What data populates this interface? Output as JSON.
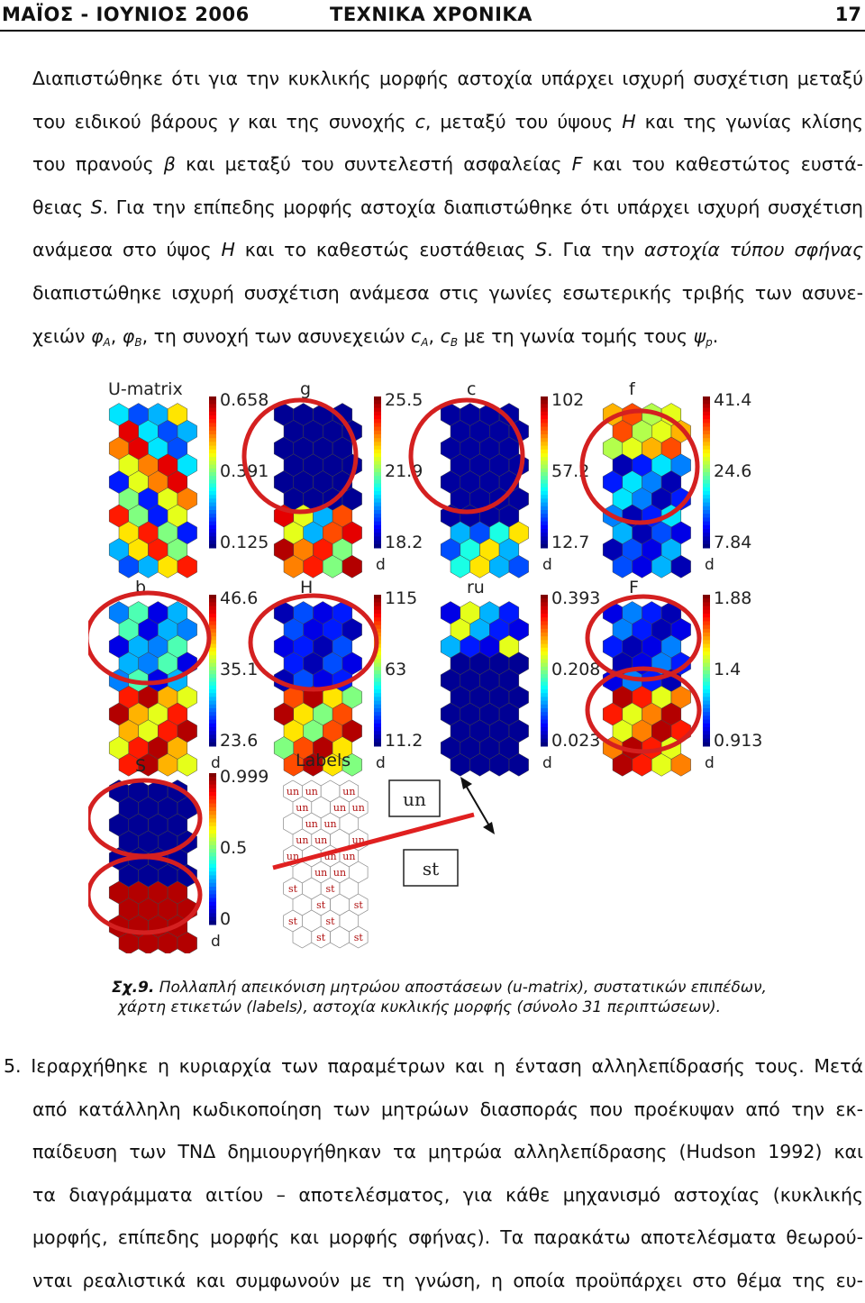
{
  "header": {
    "left": "ΜΑΪΟΣ - ΙΟΥΝΙΟΣ 2006",
    "center": "ΤΕΧΝΙΚΑ ΧΡΟΝΙΚΑ",
    "page": "17"
  },
  "para1": {
    "l1": "Διαπιστώθηκε ότι για την κυκλικής μορφής αστοχία υπάρχει ισχυρή συσχέτιση μεταξύ",
    "l2a": "του ειδικού βάρους ",
    "l2b": "γ",
    "l2c": " και της συνοχής ",
    "l2d": "c",
    "l2e": ", μεταξύ του ύψους ",
    "l2f": "H",
    "l2g": " και της γωνίας κλίσης",
    "l3a": "του πρανούς  ",
    "l3b": "β",
    "l3c": " και μεταξύ του συντελεστή ασφαλείας ",
    "l3d": "F",
    "l3e": " και του καθεστώτος ευστά-",
    "l4a": "θειας ",
    "l4b": "S",
    "l4c": ". Για την επίπεδης μορφής αστοχία διαπιστώθηκε ότι υπάρχει ισχυρή συσχέτιση",
    "l5a": "ανάμεσα στο ύψος ",
    "l5b": "H",
    "l5c": " και το καθεστώς ευστάθειας ",
    "l5d": "S",
    "l5e": ". Για την ",
    "l5f": "αστοχία τύπου σφήνας",
    "l6": "διαπιστώθηκε ισχυρή συσχέτιση ανάμεσα στις γωνίες εσωτερικής τριβής των ασυνε-",
    "l7a": "χειών ",
    "l7b": "φ",
    "l7c": "A",
    "l7d": ", ",
    "l7e": "φ",
    "l7f": "B",
    "l7g": ", τη συνοχή των ασυνεχειών ",
    "l7h": "c",
    "l7i": "A",
    "l7j": ", ",
    "l7k": "c",
    "l7l": "B",
    "l7m": " με τη γωνία τομής τους ",
    "l7n": "ψ",
    "l7o": "p",
    "l7p": "."
  },
  "figure": {
    "panels": [
      {
        "title": "U-matrix",
        "ticks": [
          "0.658",
          "0.391",
          "0.125"
        ],
        "unit": ""
      },
      {
        "title": "g",
        "ticks": [
          "25.5",
          "21.9",
          "18.2"
        ],
        "unit": "d"
      },
      {
        "title": "c",
        "ticks": [
          "102",
          "57.2",
          "12.7"
        ],
        "unit": "d"
      },
      {
        "title": "f",
        "ticks": [
          "41.4",
          "24.6",
          "7.84"
        ],
        "unit": "d"
      },
      {
        "title": "b",
        "ticks": [
          "46.6",
          "35.1",
          "23.6"
        ],
        "unit": "d"
      },
      {
        "title": "H",
        "ticks": [
          "115",
          "63",
          "11.2"
        ],
        "unit": "d"
      },
      {
        "title": "ru",
        "ticks": [
          "0.393",
          "0.208",
          "0.023"
        ],
        "unit": "d"
      },
      {
        "title": "F",
        "ticks": [
          "1.88",
          "1.4",
          "0.913"
        ],
        "unit": "d"
      },
      {
        "title": "S",
        "ticks": [
          "0.999",
          "0.5",
          "0"
        ],
        "unit": "d"
      }
    ],
    "labels_title": "Labels",
    "label_un": "un",
    "label_st": "st",
    "box_un": "un",
    "box_st": "st",
    "colors": {
      "circle": "#d42020",
      "line": "#e02020",
      "hex_low": "#1a3fd8",
      "hex_high": "#8b0000"
    }
  },
  "caption": {
    "fig": "Σχ.9.",
    "line1": " Πολλαπλή απεικόνιση μητρώου αποστάσεων (u-matrix), συστατικών επιπέδων,",
    "line2": "χάρτη ετικετών (labels), αστοχία κυκλικής μορφής (σύνολο 31 περιπτώσεων)."
  },
  "para2": {
    "l1": "5. Ιεραρχήθηκε η κυριαρχία των παραμέτρων και η ένταση αλληλεπίδρασής τους. Μετά",
    "l2": "από κατάλληλη κωδικοποίηση των μητρώων διασποράς που προέκυψαν από την εκ-",
    "l3": "παίδευση των ΤΝΔ δημιουργήθηκαν τα μητρώα αλληλεπίδρασης (Hudson 1992) και",
    "l4": "τα διαγράμματα αιτίου – αποτελέσματος, για κάθε μηχανισμό αστοχίας (κυκλικής",
    "l5": "μορφής, επίπεδης μορφής και μορφής σφήνας). Τα παρακάτω αποτελέσματα θεωρού-",
    "l6": "νται ρεαλιστικά και συμφωνούν με τη γνώση, η οποία προϋπάρχει στο θέμα της ευ-"
  }
}
